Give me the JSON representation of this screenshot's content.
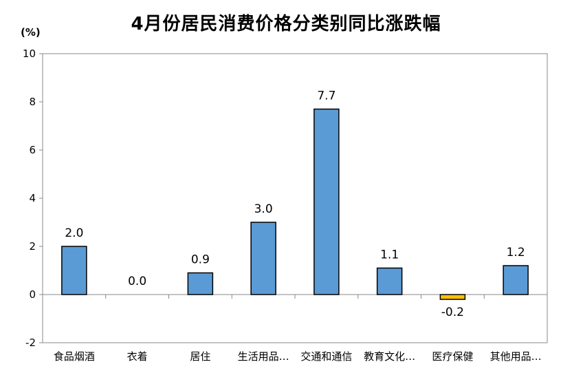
{
  "chart_data": {
    "type": "bar",
    "title": "4月份居民消费价格分类别同比涨跌幅",
    "unit": "(%)",
    "categories": [
      "食品烟酒",
      "衣着",
      "居住",
      "生活用品…",
      "交通和通信",
      "教育文化…",
      "医疗保健",
      "其他用品…"
    ],
    "values": [
      2.0,
      0.0,
      0.9,
      3.0,
      7.7,
      1.1,
      -0.2,
      1.2
    ],
    "value_labels": [
      "2.0",
      "0.0",
      "0.9",
      "3.0",
      "7.7",
      "1.1",
      "-0.2",
      "1.2"
    ],
    "ylim": [
      -2,
      10
    ],
    "yticks": [
      -2,
      0,
      2,
      4,
      6,
      8,
      10
    ],
    "grid": false,
    "colors": {
      "positive": "#5B9BD5",
      "negative": "#FFC000",
      "outline": "#000000"
    }
  }
}
